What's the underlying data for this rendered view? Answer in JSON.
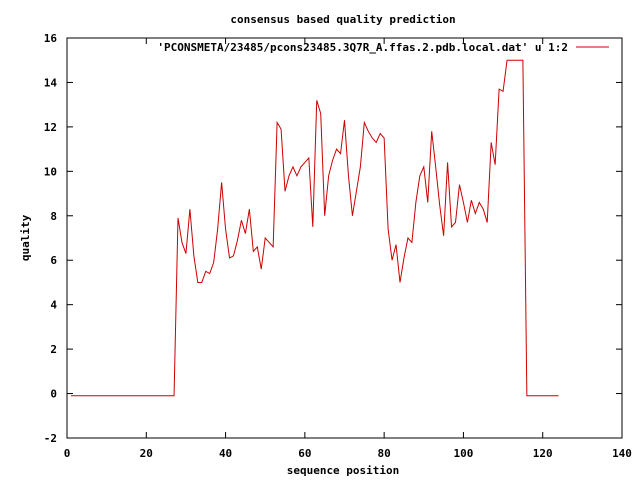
{
  "chart_data": {
    "type": "line",
    "title": "consensus based quality prediction",
    "xlabel": "sequence position",
    "ylabel": "quality",
    "xlim": [
      0,
      140
    ],
    "ylim": [
      -2,
      16
    ],
    "xticks": [
      0,
      20,
      40,
      60,
      80,
      100,
      120,
      140
    ],
    "yticks": [
      -2,
      0,
      2,
      4,
      6,
      8,
      10,
      12,
      14,
      16
    ],
    "grid": false,
    "legend_position": "top-right",
    "series": [
      {
        "name": "'PCONSMETA/23485/pcons23485.3Q7R_A.ffas.2.pdb.local.dat' u 1:2",
        "color": "#cc0000",
        "x": [
          1,
          2,
          3,
          4,
          5,
          6,
          7,
          8,
          9,
          10,
          11,
          12,
          13,
          14,
          15,
          16,
          17,
          18,
          19,
          20,
          21,
          22,
          23,
          24,
          25,
          26,
          27,
          28,
          29,
          30,
          31,
          32,
          33,
          34,
          35,
          36,
          37,
          38,
          39,
          40,
          41,
          42,
          43,
          44,
          45,
          46,
          47,
          48,
          49,
          50,
          51,
          52,
          53,
          54,
          55,
          56,
          57,
          58,
          59,
          60,
          61,
          62,
          63,
          64,
          65,
          66,
          67,
          68,
          69,
          70,
          71,
          72,
          73,
          74,
          75,
          76,
          77,
          78,
          79,
          80,
          81,
          82,
          83,
          84,
          85,
          86,
          87,
          88,
          89,
          90,
          91,
          92,
          93,
          94,
          95,
          96,
          97,
          98,
          99,
          100,
          101,
          102,
          103,
          104,
          105,
          106,
          107,
          108,
          109,
          110,
          111,
          112,
          113,
          114,
          115,
          116,
          117,
          118,
          119,
          120,
          121,
          122,
          123,
          124
        ],
        "y": [
          -0.1,
          -0.1,
          -0.1,
          -0.1,
          -0.1,
          -0.1,
          -0.1,
          -0.1,
          -0.1,
          -0.1,
          -0.1,
          -0.1,
          -0.1,
          -0.1,
          -0.1,
          -0.1,
          -0.1,
          -0.1,
          -0.1,
          -0.1,
          -0.1,
          -0.1,
          -0.1,
          -0.1,
          -0.1,
          -0.1,
          -0.1,
          7.9,
          6.8,
          6.3,
          8.3,
          6.2,
          5.0,
          5.0,
          5.5,
          5.4,
          5.9,
          7.4,
          9.5,
          7.4,
          6.1,
          6.2,
          6.9,
          7.8,
          7.2,
          8.3,
          6.4,
          6.6,
          5.6,
          7.0,
          6.8,
          6.6,
          12.2,
          11.9,
          9.1,
          9.8,
          10.2,
          9.8,
          10.2,
          10.4,
          10.6,
          7.5,
          13.2,
          12.6,
          8.0,
          9.8,
          10.5,
          11.0,
          10.8,
          12.3,
          9.8,
          8.0,
          9.1,
          10.2,
          12.2,
          11.8,
          11.5,
          11.3,
          11.7,
          11.5,
          7.4,
          6.0,
          6.7,
          5.0,
          6.1,
          7.0,
          6.8,
          8.6,
          9.8,
          10.2,
          8.6,
          11.8,
          10.2,
          8.5,
          7.1,
          10.4,
          7.5,
          7.7,
          9.4,
          8.6,
          7.7,
          8.7,
          8.1,
          8.6,
          8.3,
          7.7,
          11.3,
          10.3,
          13.7,
          13.6,
          15.0,
          15.0,
          15.0,
          15.0,
          15.0,
          -0.1,
          -0.1,
          -0.1,
          -0.1,
          -0.1,
          -0.1,
          -0.1,
          -0.1,
          -0.1
        ]
      }
    ]
  }
}
